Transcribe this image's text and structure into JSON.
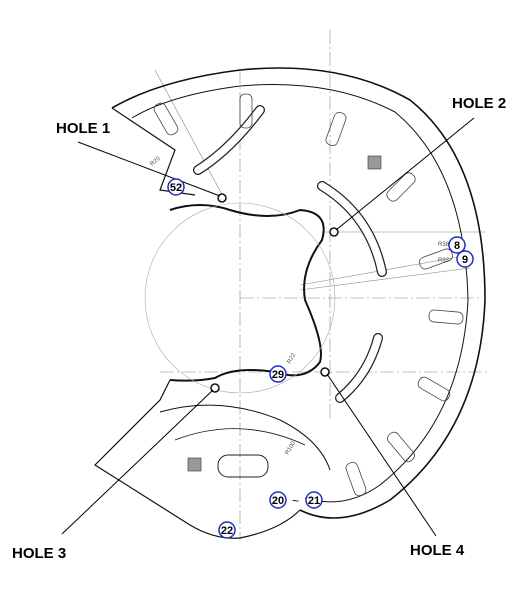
{
  "holes": [
    {
      "label": "HOLE 1"
    },
    {
      "label": "HOLE 2"
    },
    {
      "label": "HOLE 3"
    },
    {
      "label": "HOLE 4"
    }
  ],
  "balloons": [
    "8",
    "9",
    "20",
    "21",
    "22",
    "29",
    "52"
  ],
  "range_separator": "~",
  "colors": {
    "line": "#111111",
    "construction": "#777777",
    "balloon": "#1f2fbf"
  }
}
